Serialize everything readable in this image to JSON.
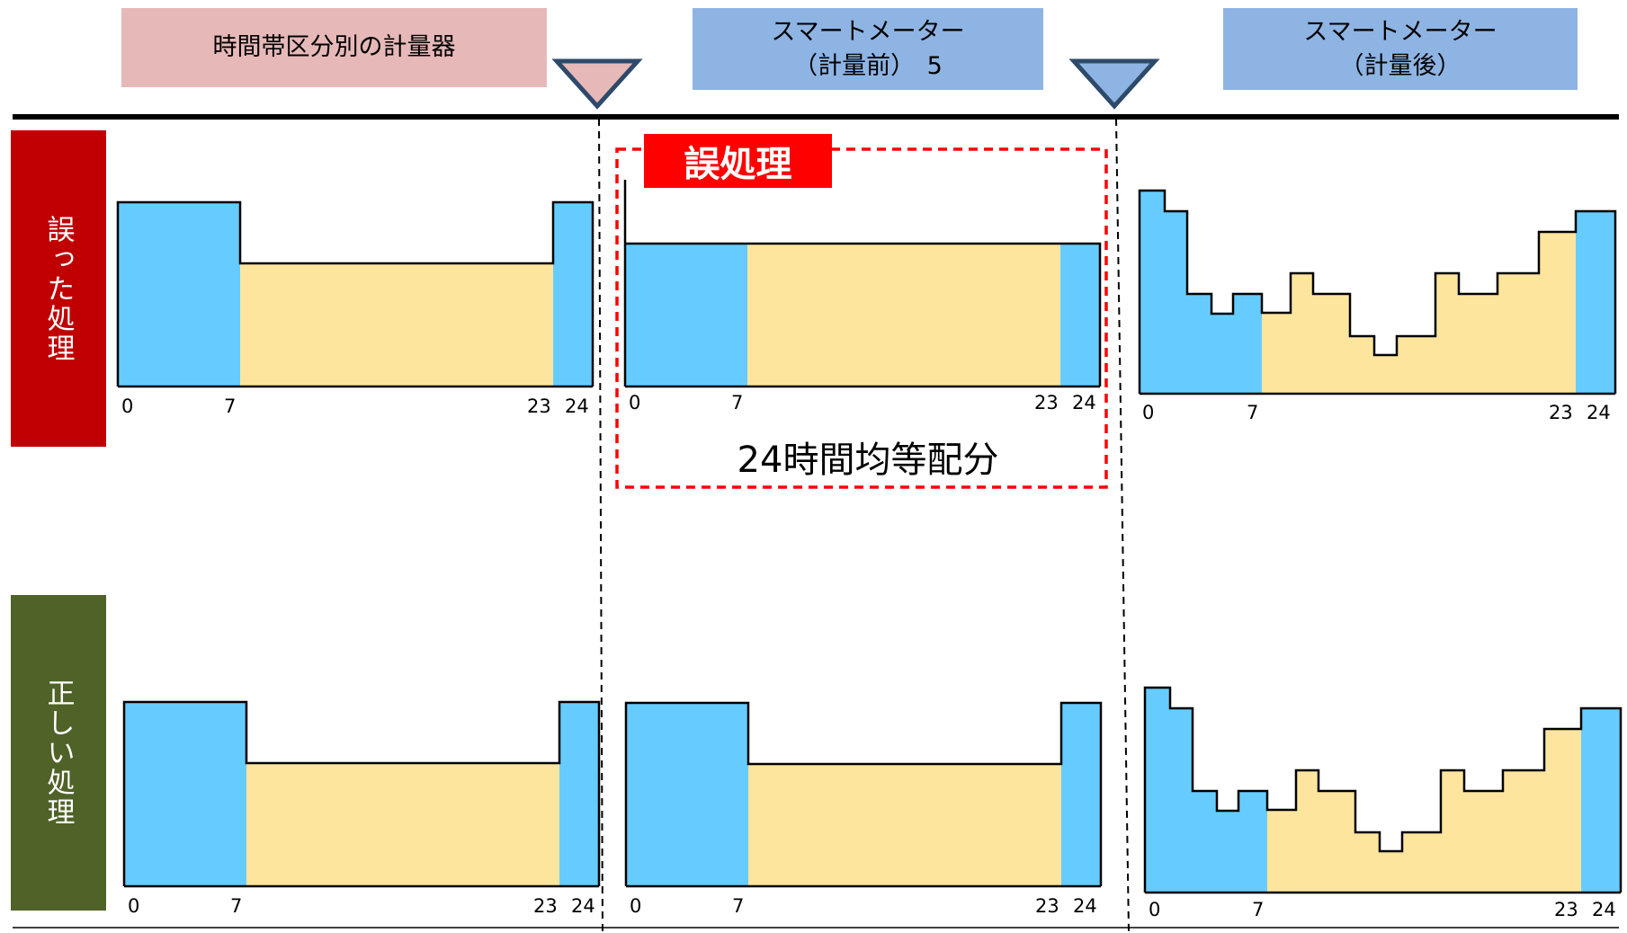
{
  "header": {
    "meter_by_period": "時間帯区分別の計量器",
    "smart_before_line1": "スマートメーター",
    "smart_before_line2": "（計量前）　5",
    "smart_after_line1": "スマートメーター",
    "smart_after_line2": "（計量後）"
  },
  "rows": {
    "wrong_label": "誤った処理",
    "correct_label": "正しい処理"
  },
  "error_tag": "誤処理",
  "even_allocation_caption": "24時間均等配分",
  "axis_ticks": [
    "0",
    "7",
    "23",
    "24"
  ],
  "colors": {
    "offpeak_blue": "#66ccff",
    "daytime_yellow": "#fde59e",
    "header_pink": "#e6b9b8",
    "header_blue": "#8eb4e3",
    "wrong_red": "#c00000",
    "correct_green": "#4f6228",
    "error_red": "#ff0000"
  }
}
